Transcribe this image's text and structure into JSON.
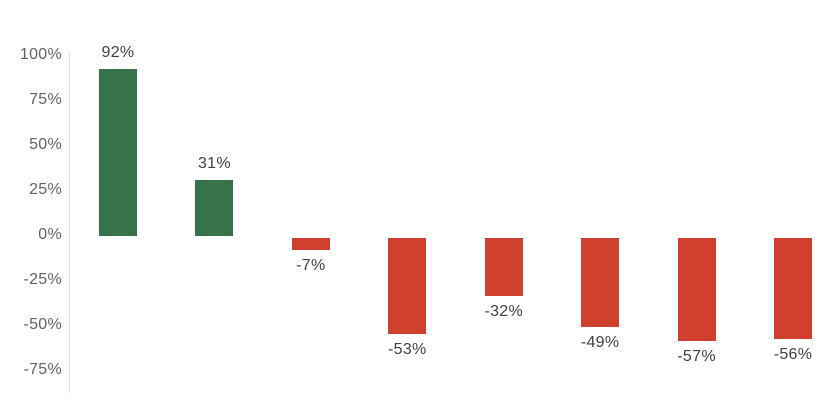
{
  "chart_data": {
    "type": "bar",
    "title": "",
    "xlabel": "",
    "ylabel": "",
    "values": [
      92,
      31,
      -7,
      -53,
      -32,
      -49,
      -57,
      -56
    ],
    "bar_labels": [
      "92%",
      "31%",
      "-7%",
      "-53%",
      "-32%",
      "-49%",
      "-57%",
      "-56%"
    ],
    "y_tick_labels": [
      "100%",
      "75%",
      "50%",
      "25%",
      "0%",
      "-25%",
      "-50%",
      "-75%"
    ],
    "y_tick_values": [
      100,
      75,
      50,
      25,
      0,
      -25,
      -50,
      -75
    ],
    "ylim": [
      -88,
      100
    ],
    "grid": false,
    "legend": "none",
    "value_label_position": "outside-end",
    "colors": {
      "positive_bar": "#37734a",
      "negative_bar": "#d0402f",
      "axis_line": "#dcdcdc",
      "tick_label": "#5f6368",
      "value_label": "#3c4043",
      "background": "#ffffff"
    }
  }
}
